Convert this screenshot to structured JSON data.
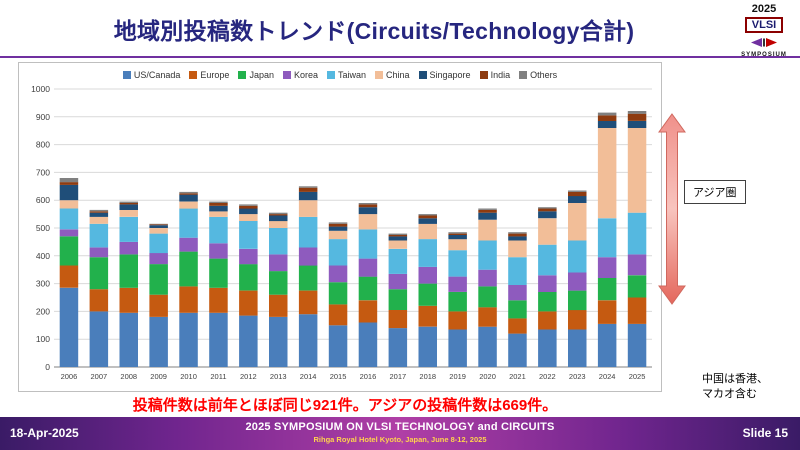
{
  "header": {
    "title": "地域別投稿数トレンド(Circuits/Technology合計)"
  },
  "logo": {
    "year": "2025",
    "name": "VLSI",
    "subtitle": "SYMPOSIUM"
  },
  "chart_data": {
    "type": "bar",
    "stacked": true,
    "title": "",
    "xlabel": "",
    "ylabel": "",
    "ylim": [
      0,
      1000
    ],
    "ytick_interval": 100,
    "grid": true,
    "legend_position": "top",
    "categories": [
      "2006",
      "2007",
      "2008",
      "2009",
      "2010",
      "2011",
      "2012",
      "2013",
      "2014",
      "2015",
      "2016",
      "2017",
      "2018",
      "2019",
      "2020",
      "2021",
      "2022",
      "2023",
      "2024",
      "2025"
    ],
    "series": [
      {
        "name": "US/Canada",
        "color": "#4A7EBB",
        "values": [
          285,
          200,
          195,
          180,
          195,
          195,
          185,
          180,
          190,
          150,
          160,
          140,
          145,
          135,
          145,
          120,
          135,
          135,
          155,
          155
        ]
      },
      {
        "name": "Europe",
        "color": "#C55A11",
        "values": [
          80,
          80,
          90,
          80,
          95,
          90,
          90,
          80,
          85,
          75,
          80,
          65,
          75,
          65,
          70,
          55,
          65,
          70,
          85,
          95
        ]
      },
      {
        "name": "Japan",
        "color": "#22B14C",
        "values": [
          105,
          115,
          120,
          110,
          125,
          105,
          95,
          85,
          90,
          80,
          85,
          75,
          80,
          70,
          75,
          65,
          70,
          70,
          80,
          80
        ]
      },
      {
        "name": "Korea",
        "color": "#8E5BBE",
        "values": [
          25,
          35,
          45,
          40,
          50,
          55,
          55,
          60,
          65,
          60,
          65,
          55,
          60,
          55,
          60,
          55,
          60,
          65,
          75,
          75
        ]
      },
      {
        "name": "Taiwan",
        "color": "#55B8E0",
        "values": [
          75,
          85,
          90,
          70,
          105,
          95,
          100,
          95,
          110,
          95,
          105,
          90,
          100,
          95,
          105,
          100,
          110,
          115,
          140,
          150
        ]
      },
      {
        "name": "China",
        "color": "#F2BE98",
        "values": [
          30,
          25,
          25,
          20,
          25,
          20,
          25,
          25,
          60,
          30,
          55,
          30,
          55,
          40,
          75,
          60,
          95,
          135,
          325,
          305
        ]
      },
      {
        "name": "Singapore",
        "color": "#1F4E79",
        "values": [
          55,
          15,
          20,
          10,
          25,
          20,
          20,
          20,
          30,
          15,
          25,
          15,
          20,
          15,
          25,
          15,
          25,
          25,
          25,
          25
        ]
      },
      {
        "name": "India",
        "color": "#8E3B10",
        "values": [
          10,
          5,
          5,
          3,
          5,
          10,
          10,
          5,
          15,
          10,
          10,
          5,
          10,
          5,
          10,
          10,
          10,
          15,
          20,
          26
        ]
      },
      {
        "name": "Others",
        "color": "#808080",
        "values": [
          15,
          5,
          5,
          2,
          5,
          5,
          5,
          5,
          5,
          5,
          5,
          5,
          5,
          5,
          5,
          5,
          5,
          5,
          10,
          10
        ]
      }
    ]
  },
  "annotations": {
    "asia_label": "アジア圏",
    "china_note_line1": "中国は香港、",
    "china_note_line2": "マカオ含む"
  },
  "highlight": {
    "text": "投稿件数は前年とほぼ同じ921件。アジアの投稿件数は669件。"
  },
  "footer": {
    "date": "18-Apr-2025",
    "title": "2025 SYMPOSIUM ON VLSI TECHNOLOGY and CIRCUITS",
    "subtitle": "Rihga Royal Hotel Kyoto, Japan, June 8-12, 2025",
    "slide": "Slide 15"
  }
}
